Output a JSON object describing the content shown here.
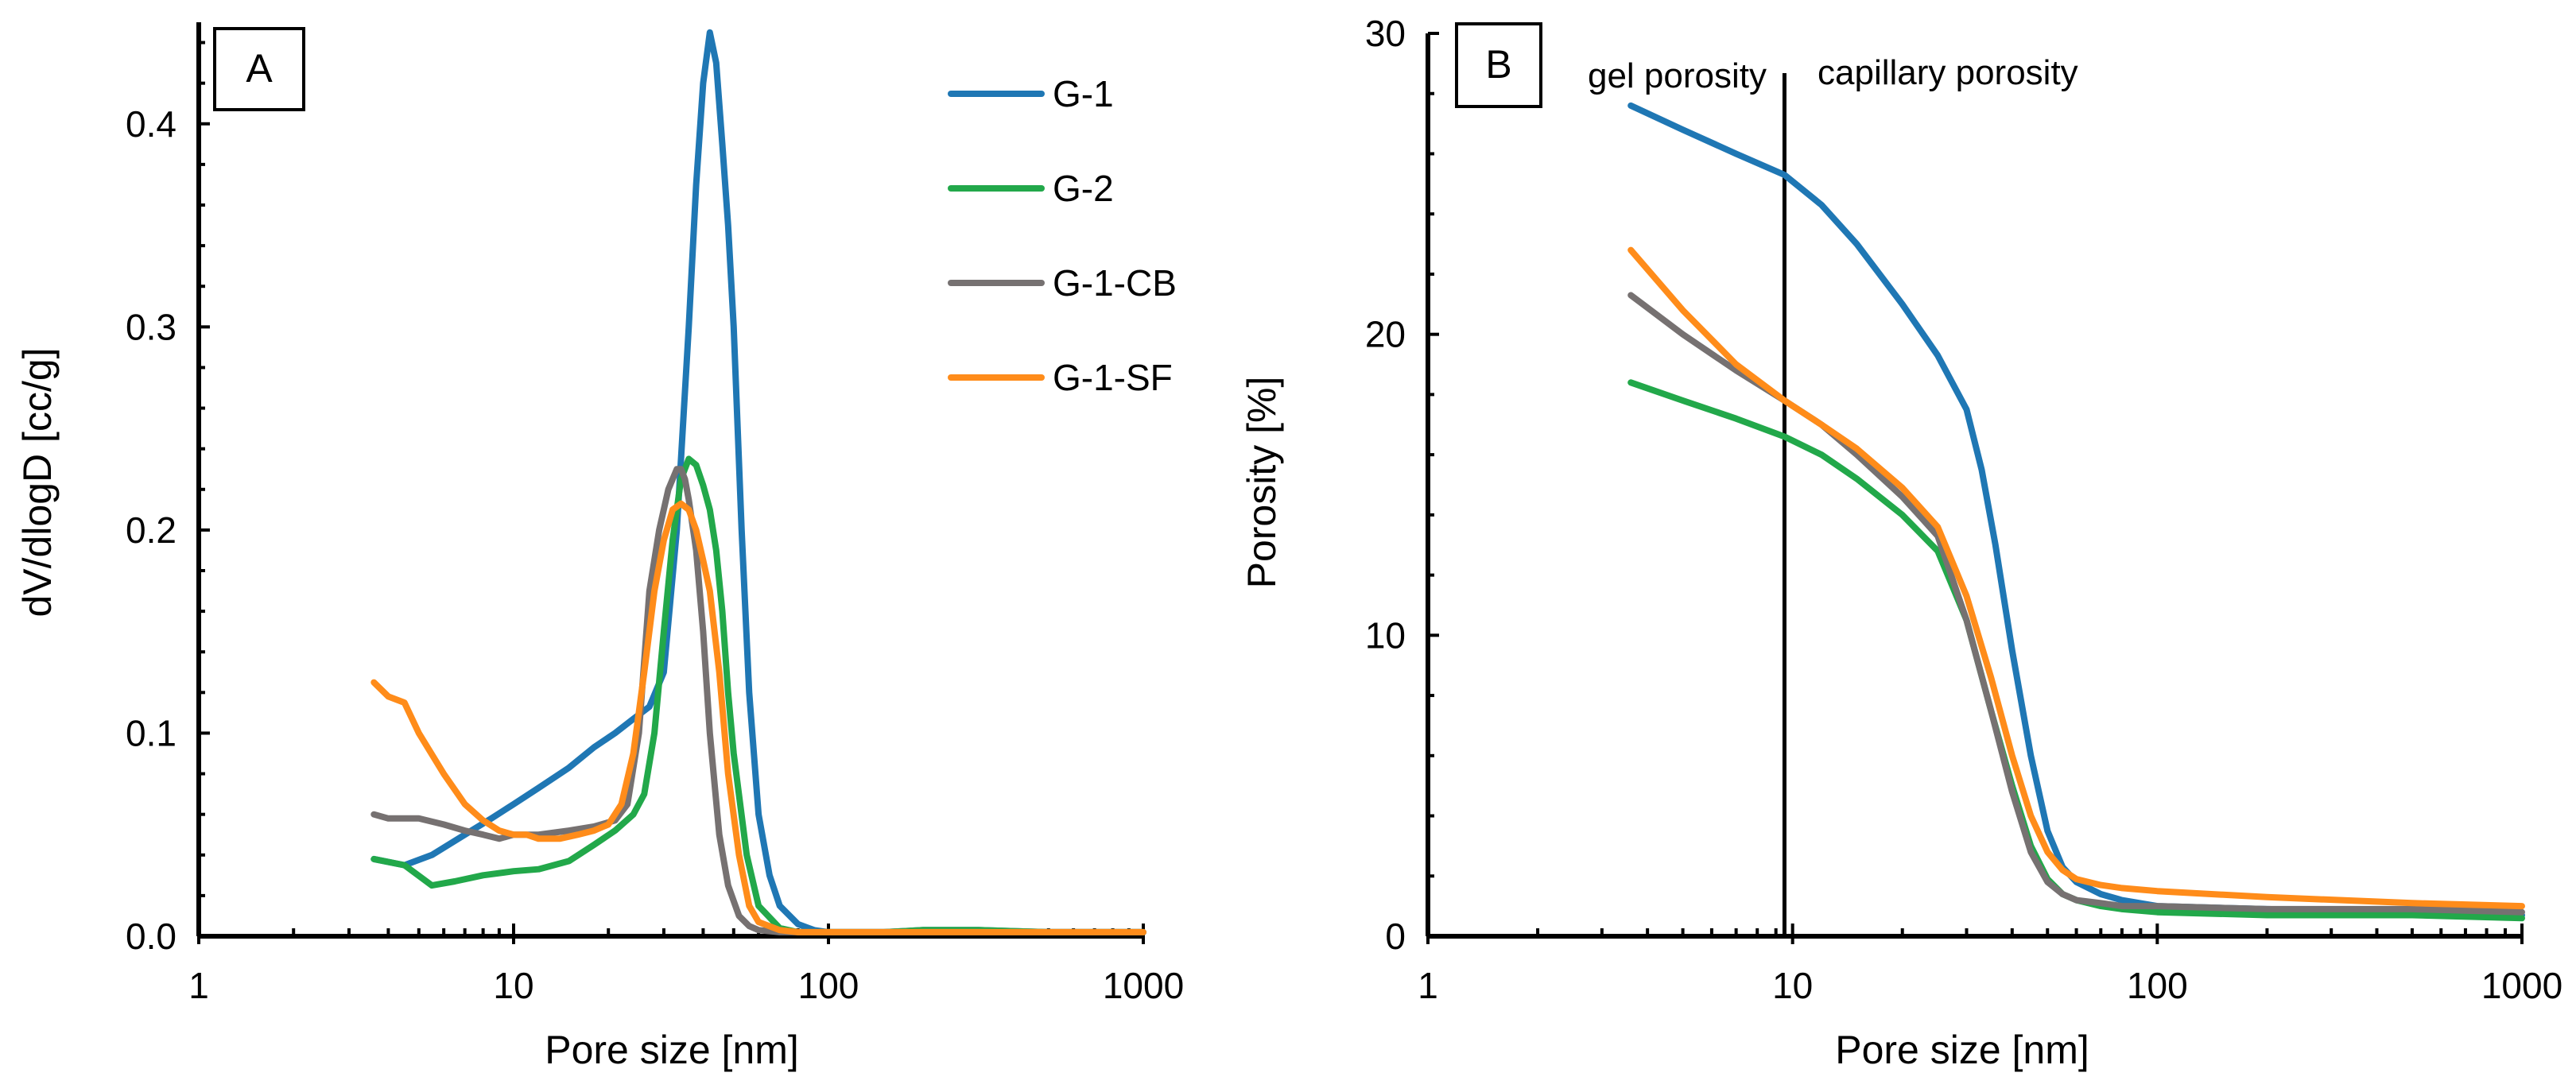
{
  "colors": {
    "G-1": "#1f77b4",
    "G-2": "#22a84a",
    "G-1-CB": "#767171",
    "G-1-SF": "#ff8c1a"
  },
  "chart_data": [
    {
      "type": "line",
      "panel": "A",
      "xlabel": "Pore size [nm]",
      "ylabel": "dV/dlogD [cc/g]",
      "xscale": "log",
      "xlim": [
        1,
        1000
      ],
      "ylim": [
        0,
        0.45
      ],
      "xticks": [
        1,
        10,
        100,
        1000
      ],
      "xtick_labels": [
        "1",
        "10",
        "100",
        "1000"
      ],
      "yticks": [
        0,
        0.1,
        0.2,
        0.3,
        0.4
      ],
      "ytick_labels": [
        "0.0",
        "0.1",
        "0.2",
        "0.3",
        "0.4"
      ],
      "legend": [
        "G-1",
        "G-2",
        "G-1-CB",
        "G-1-SF"
      ],
      "series": [
        {
          "name": "G-1",
          "x": [
            3.6,
            4.5,
            5.5,
            7,
            8.5,
            10,
            12,
            15,
            18,
            21,
            24,
            27,
            30,
            33,
            36,
            38,
            40,
            42,
            44,
            46,
            48,
            50,
            53,
            56,
            60,
            65,
            70,
            80,
            90,
            100,
            150,
            200,
            300,
            500,
            1000
          ],
          "y": [
            0.038,
            0.035,
            0.04,
            0.05,
            0.058,
            0.065,
            0.073,
            0.083,
            0.093,
            0.1,
            0.107,
            0.113,
            0.13,
            0.2,
            0.3,
            0.37,
            0.42,
            0.445,
            0.43,
            0.39,
            0.35,
            0.3,
            0.2,
            0.12,
            0.06,
            0.03,
            0.015,
            0.006,
            0.003,
            0.002,
            0.002,
            0.003,
            0.003,
            0.002,
            0.002
          ]
        },
        {
          "name": "G-2",
          "x": [
            3.6,
            4.5,
            5.5,
            6.5,
            8,
            10,
            12,
            15,
            18,
            21,
            24,
            26,
            28,
            30,
            32,
            34,
            36,
            38,
            40,
            42,
            44,
            46,
            48,
            50,
            55,
            60,
            70,
            80,
            100,
            150,
            200,
            300,
            500,
            1000
          ],
          "y": [
            0.038,
            0.035,
            0.025,
            0.027,
            0.03,
            0.032,
            0.033,
            0.037,
            0.045,
            0.052,
            0.06,
            0.07,
            0.1,
            0.15,
            0.195,
            0.225,
            0.235,
            0.232,
            0.222,
            0.21,
            0.19,
            0.16,
            0.12,
            0.09,
            0.04,
            0.015,
            0.004,
            0.002,
            0.002,
            0.002,
            0.003,
            0.003,
            0.002,
            0.002
          ]
        },
        {
          "name": "G-1-CB",
          "x": [
            3.6,
            4,
            5,
            6,
            7,
            8,
            9,
            10,
            12,
            15,
            18,
            21,
            23,
            25,
            27,
            29,
            31,
            33,
            34,
            35,
            36,
            38,
            40,
            42,
            45,
            48,
            52,
            56,
            60,
            70,
            80,
            100,
            200,
            500,
            1000
          ],
          "y": [
            0.06,
            0.058,
            0.058,
            0.055,
            0.052,
            0.05,
            0.048,
            0.05,
            0.05,
            0.052,
            0.054,
            0.057,
            0.065,
            0.1,
            0.17,
            0.2,
            0.22,
            0.23,
            0.23,
            0.225,
            0.215,
            0.19,
            0.15,
            0.1,
            0.05,
            0.025,
            0.01,
            0.005,
            0.003,
            0.002,
            0.002,
            0.002,
            0.002,
            0.002,
            0.002
          ]
        },
        {
          "name": "G-1-SF",
          "x": [
            3.6,
            4,
            4.5,
            5,
            6,
            7,
            8,
            9,
            10,
            11,
            12,
            14,
            16,
            18,
            20,
            22,
            24,
            26,
            28,
            30,
            32,
            34,
            36,
            38,
            40,
            42,
            45,
            48,
            52,
            56,
            60,
            70,
            80,
            100,
            200,
            500,
            1000
          ],
          "y": [
            0.125,
            0.118,
            0.115,
            0.1,
            0.08,
            0.065,
            0.057,
            0.052,
            0.05,
            0.05,
            0.048,
            0.048,
            0.05,
            0.052,
            0.055,
            0.065,
            0.09,
            0.13,
            0.17,
            0.195,
            0.21,
            0.213,
            0.21,
            0.2,
            0.185,
            0.17,
            0.13,
            0.08,
            0.04,
            0.015,
            0.007,
            0.003,
            0.002,
            0.002,
            0.002,
            0.002,
            0.002
          ]
        }
      ]
    },
    {
      "type": "line",
      "panel": "B",
      "xlabel": "Pore size [nm]",
      "ylabel": "Porosity  [%]",
      "xscale": "log",
      "xlim": [
        1,
        1000
      ],
      "ylim": [
        0,
        30
      ],
      "xticks": [
        1,
        10,
        100,
        1000
      ],
      "xtick_labels": [
        "1",
        "10",
        "100",
        "1000"
      ],
      "yticks": [
        0,
        10,
        20,
        30
      ],
      "ytick_labels": [
        "0",
        "10",
        "20",
        "30"
      ],
      "divider_x": 9.5,
      "annotations": [
        "gel porosity",
        "capillary porosity"
      ],
      "series": [
        {
          "name": "G-1",
          "x": [
            3.6,
            5,
            7,
            9.5,
            12,
            15,
            20,
            25,
            30,
            33,
            36,
            40,
            45,
            50,
            55,
            60,
            70,
            80,
            100,
            200,
            500,
            1000
          ],
          "y": [
            27.6,
            26.8,
            26.0,
            25.3,
            24.3,
            23.0,
            21.0,
            19.3,
            17.5,
            15.5,
            13.0,
            9.5,
            6.0,
            3.5,
            2.3,
            1.8,
            1.4,
            1.2,
            1.0,
            0.9,
            0.8,
            0.7
          ]
        },
        {
          "name": "G-2",
          "x": [
            3.6,
            5,
            7,
            9.5,
            12,
            15,
            20,
            25,
            30,
            35,
            40,
            45,
            50,
            55,
            60,
            70,
            80,
            100,
            200,
            500,
            1000
          ],
          "y": [
            18.4,
            17.8,
            17.2,
            16.6,
            16.0,
            15.2,
            14.0,
            12.8,
            10.5,
            7.5,
            5.0,
            3.0,
            1.9,
            1.4,
            1.2,
            1.0,
            0.9,
            0.8,
            0.7,
            0.7,
            0.6
          ]
        },
        {
          "name": "G-1-CB",
          "x": [
            3.6,
            5,
            7,
            9.5,
            12,
            15,
            20,
            25,
            30,
            35,
            40,
            45,
            50,
            55,
            60,
            70,
            80,
            100,
            200,
            500,
            1000
          ],
          "y": [
            21.3,
            20.0,
            18.8,
            17.8,
            17.0,
            16.0,
            14.6,
            13.3,
            10.5,
            7.5,
            4.8,
            2.8,
            1.8,
            1.4,
            1.2,
            1.1,
            1.0,
            1.0,
            0.9,
            0.9,
            0.8
          ]
        },
        {
          "name": "G-1-SF",
          "x": [
            3.6,
            5,
            7,
            9.5,
            12,
            15,
            20,
            25,
            30,
            35,
            40,
            45,
            50,
            55,
            60,
            70,
            80,
            100,
            200,
            500,
            1000
          ],
          "y": [
            22.8,
            20.8,
            19.0,
            17.8,
            17.0,
            16.2,
            14.9,
            13.6,
            11.3,
            8.6,
            6.0,
            4.0,
            2.8,
            2.2,
            1.9,
            1.7,
            1.6,
            1.5,
            1.3,
            1.1,
            1.0
          ]
        }
      ]
    }
  ]
}
